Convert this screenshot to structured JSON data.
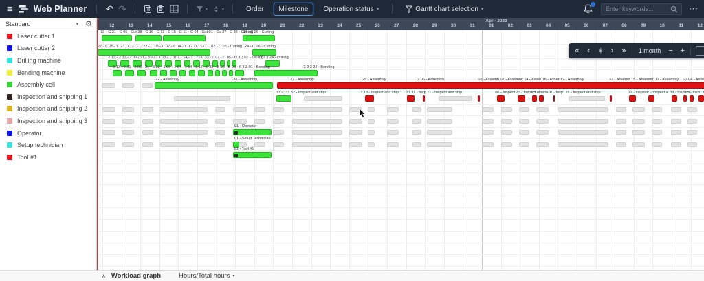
{
  "toolbar": {
    "brand": "Web Planner",
    "order_label": "Order",
    "milestone_label": "Milestone",
    "operation_status_label": "Operation status",
    "gantt_selection_label": "Gantt chart selection"
  },
  "search": {
    "placeholder": "Enter keywords..."
  },
  "icons": {
    "hamburger": "≡",
    "undo": "↶",
    "redo": "↷",
    "caret": "▾",
    "gear": "⚙",
    "ellipsis": "⋯",
    "chevron_up": "∧",
    "nav_first": "«",
    "nav_prev": "‹",
    "nav_fit": "›|‹",
    "nav_next": "›",
    "nav_last": "»",
    "minus": "−",
    "plus": "+"
  },
  "nav": {
    "zoom_label": "1 month"
  },
  "bottom": {
    "workload_label": "Workload graph",
    "hours_label": "Hours/Total hours"
  },
  "sidebar": {
    "view_label": "Standard",
    "items": [
      {
        "label": "Laser cutter 1",
        "color": "#e3131e"
      },
      {
        "label": "Laser cutter 2",
        "color": "#1515e0"
      },
      {
        "label": "Drilling machine",
        "color": "#35e6df"
      },
      {
        "label": "Bending machine",
        "color": "#f0ee3a"
      },
      {
        "label": "Assembly cell",
        "color": "#35d435"
      },
      {
        "label": "Inspection and shipping 1",
        "color": "#35211f"
      },
      {
        "label": "Inspection and shipping 2",
        "color": "#d9b629"
      },
      {
        "label": "Inspection and shipping 3",
        "color": "#eaa5a8"
      },
      {
        "label": "Operator",
        "color": "#1515e0"
      },
      {
        "label": "Setup technician",
        "color": "#35e6df"
      },
      {
        "label": "Tool #1",
        "color": "#e3131e"
      }
    ]
  },
  "timeline": {
    "month_label": "Apr - 2023",
    "march_days": [
      "12",
      "13",
      "14",
      "15",
      "16",
      "17",
      "18",
      "19",
      "20",
      "21",
      "22",
      "23",
      "24",
      "25",
      "26",
      "27",
      "28",
      "29",
      "30",
      "31"
    ],
    "april_days": [
      "01",
      "02",
      "03",
      "04",
      "05",
      "06",
      "07",
      "08",
      "09",
      "10",
      "11",
      "12"
    ]
  },
  "colors": {
    "g": "#3be33b",
    "g_border": "#22b822",
    "r": "#e01111",
    "r_border": "#b30d0d",
    "x": "#e3e3e3",
    "x_border": "#d2d2d2"
  },
  "gantt": {
    "gray_pattern": [
      [
        0,
        0.68
      ],
      [
        1.05,
        1.65
      ],
      [
        2.1,
        2.68
      ],
      [
        3.05,
        5.55
      ],
      [
        5.95,
        6.5
      ],
      [
        6.9,
        7.6
      ],
      [
        8,
        8.6
      ],
      [
        9,
        9.55
      ],
      [
        10,
        12.65
      ],
      [
        13,
        13.68
      ],
      [
        14,
        14.35
      ],
      [
        15,
        15.6
      ],
      [
        16.35,
        16.8
      ],
      [
        17.1,
        18.45
      ],
      [
        20,
        20.6
      ],
      [
        21,
        21.6
      ],
      [
        21.95,
        22.5
      ],
      [
        22.85,
        23.5
      ],
      [
        24,
        26.65
      ],
      [
        27.05,
        27.6
      ],
      [
        27.95,
        28.6
      ],
      [
        28.95,
        29.5
      ],
      [
        29.95,
        30.5
      ],
      [
        30.85,
        31.35
      ]
    ],
    "rows": [
      {
        "name": "Laser cutter 1",
        "labels": [
          [
            -0.1,
            "13 - C 31 - C 06 - Cut 38 - C 16 - C 12 - C 15 - C 11 - C 04 - Cut 01 - Cu 37 - C 32 - Cutting"
          ],
          [
            7.4,
            "34 - C 26 - Cutting"
          ]
        ],
        "bars": [
          [
            -0.05,
            1.55,
            "g"
          ],
          [
            1.75,
            3.1,
            "g"
          ],
          [
            3.2,
            5.45,
            "g"
          ],
          [
            7.4,
            9.1,
            "g"
          ]
        ]
      },
      {
        "name": "Laser cutter 2",
        "labels": [
          [
            -0.25,
            "27 - C 25 - C 23 - C 21 - C 22 - C 03 - C 07 - C 14 - C 17 - C 33 - C 02 - C 05 - Cutting"
          ],
          [
            7.5,
            "24 - C 26 - Cutting"
          ]
        ],
        "bars": [
          [
            -0.25,
            5.7,
            "g"
          ],
          [
            7.9,
            9.15,
            "g"
          ]
        ]
      },
      {
        "name": "Drilling machine",
        "labels": [
          [
            0.3,
            "2 13 - 2 31 - 2 06 - 21 - 3 22 - 1 03 - 1 07 - 1 14 - 1 17 - 0 33 - 0 02 - C 05 - D 3 3 01 - Drilling"
          ],
          [
            8.3,
            "3 2 3 24 - Drilling"
          ]
        ],
        "bars": [
          [
            0.3,
            0.75,
            "g"
          ],
          [
            0.95,
            1.4,
            "g"
          ],
          [
            1.6,
            2.05,
            "g"
          ],
          [
            2.25,
            2.65,
            "g"
          ],
          [
            2.8,
            3.15,
            "g"
          ],
          [
            3.3,
            3.65,
            "g"
          ],
          [
            3.8,
            4.15,
            "g"
          ],
          [
            4.3,
            4.65,
            "g"
          ],
          [
            4.8,
            5.15,
            "g"
          ],
          [
            5.3,
            5.65,
            "g"
          ],
          [
            5.8,
            6.1,
            "g"
          ],
          [
            6.2,
            6.45,
            "g"
          ],
          [
            6.55,
            6.75,
            "g"
          ],
          [
            6.85,
            7.05,
            "g"
          ],
          [
            8.6,
            9.35,
            "g"
          ]
        ]
      },
      {
        "name": "Bending machine",
        "labels": [
          [
            0.55,
            "2 13 - 2 31 - 2 06 - 21 - 3 22 - 1 03 - 1 07 - 1 14 - 1 17 - 0 33 - B 02 - B 06 - 6 3 3 01 - Bending"
          ],
          [
            10.6,
            "3 2 3 24 - Bending"
          ]
        ],
        "bars": [
          [
            0.55,
            1.0,
            "g"
          ],
          [
            1.2,
            1.65,
            "g"
          ],
          [
            1.85,
            2.3,
            "g"
          ],
          [
            2.5,
            2.9,
            "g"
          ],
          [
            3.05,
            3.4,
            "g"
          ],
          [
            3.55,
            3.9,
            "g"
          ],
          [
            4.05,
            4.4,
            "g"
          ],
          [
            4.55,
            4.9,
            "g"
          ],
          [
            5.05,
            5.4,
            "g"
          ],
          [
            5.55,
            5.85,
            "g"
          ],
          [
            5.95,
            6.2,
            "g"
          ],
          [
            6.3,
            6.55,
            "g"
          ],
          [
            6.65,
            6.9,
            "g"
          ],
          [
            7.0,
            7.45,
            "g"
          ],
          [
            8.0,
            11.35,
            "g"
          ]
        ]
      },
      {
        "name": "Assembly cell",
        "labels": [
          [
            2.8,
            "22 - Assembly"
          ],
          [
            6.9,
            "32 - Assembly"
          ],
          [
            9.9,
            "27 - Assembly"
          ],
          [
            13.7,
            "25 - Assembly"
          ],
          [
            16.6,
            "2 06 - Assembly"
          ],
          [
            19.8,
            "03 - Assemb 07 - Assembl; 14 - Asser 16 - Asser 12 - Assembly"
          ],
          [
            26.7,
            "33 - Assemb 15 - Assembl; 11 - Assembly"
          ],
          [
            30.6,
            "02 04 - Asse"
          ]
        ],
        "bars": [
          [
            -0.05,
            0.7,
            "x"
          ],
          [
            1.05,
            1.65,
            "x"
          ],
          [
            2.05,
            2.65,
            "x"
          ],
          [
            2.75,
            8.98,
            "g"
          ],
          [
            9.2,
            31.8,
            "r"
          ]
        ]
      },
      {
        "name": "Inspection and shipping 1",
        "labels": [
          [
            9.15,
            "31 2, 31 32 - Inspect and ship"
          ],
          [
            13.6,
            "2 13 - Inspect and ship"
          ],
          [
            16.0,
            "21 31 - Insp 21 - Inspect and ship"
          ],
          [
            20.7,
            "06 - Inspect"
          ],
          [
            21.8,
            "23 - Inspect a"
          ],
          [
            22.6,
            "03 - Inspe 1"
          ],
          [
            23.5,
            "07 - Insp"
          ],
          [
            24.4,
            "16 - Inspect and ship"
          ],
          [
            27.7,
            "12 - Inspect"
          ],
          [
            28.6,
            "17 - Inspect a"
          ],
          [
            29.9,
            "33 - Inspect"
          ],
          [
            30.7,
            "15 - Insp"
          ],
          [
            31.4,
            "11 02 - Insp"
          ]
        ],
        "bars": [
          [
            3.75,
            6.75,
            "x"
          ],
          [
            9.15,
            9.95,
            "g"
          ],
          [
            10.6,
            12.65,
            "x"
          ],
          [
            13.85,
            14.3,
            "r"
          ],
          [
            16.05,
            16.45,
            "r"
          ],
          [
            16.9,
            17.0,
            "r"
          ],
          [
            17.7,
            19.5,
            "x"
          ],
          [
            19.8,
            19.9,
            "r"
          ],
          [
            20.8,
            21.2,
            "r"
          ],
          [
            21.9,
            22.3,
            "r"
          ],
          [
            22.65,
            22.9,
            "r"
          ],
          [
            23.0,
            23.25,
            "r"
          ],
          [
            23.75,
            23.85,
            "r"
          ],
          [
            24.55,
            26.5,
            "x"
          ],
          [
            26.75,
            26.85,
            "r"
          ],
          [
            27.75,
            28.1,
            "r"
          ],
          [
            28.75,
            29.1,
            "r"
          ],
          [
            30.0,
            30.3,
            "r"
          ],
          [
            30.6,
            30.8,
            "r"
          ],
          [
            30.95,
            31.15,
            "r"
          ],
          [
            31.4,
            31.7,
            "r"
          ]
        ]
      },
      {
        "name": "Inspection and shipping 2",
        "use_gray_pattern": true,
        "labels": [],
        "bars": []
      },
      {
        "name": "Inspection and shipping 3",
        "use_gray_pattern": true,
        "labels": [],
        "bars": []
      },
      {
        "name": "Operator",
        "use_gray_pattern": true,
        "labels": [
          [
            6.95,
            "01 - Operator"
          ]
        ],
        "bars": [
          [
            6.9,
            8.93,
            "g",
            1
          ]
        ]
      },
      {
        "name": "Setup technician",
        "use_gray_pattern": true,
        "labels": [
          [
            6.95,
            "01 - Setup Technician"
          ]
        ],
        "bars": [
          [
            6.9,
            7.2,
            "g"
          ]
        ]
      },
      {
        "name": "Tool #1",
        "labels": [
          [
            6.95,
            "01 - Tool #1"
          ]
        ],
        "bars": [
          [
            6.9,
            8.93,
            "g",
            1
          ]
        ]
      }
    ]
  }
}
